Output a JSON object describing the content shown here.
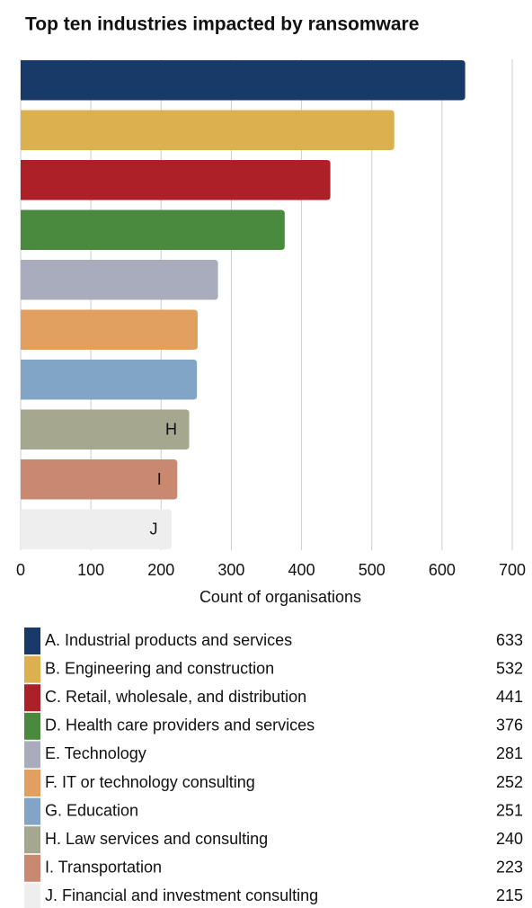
{
  "chart_data": {
    "type": "barh",
    "title": "Top ten industries impacted by ransomware",
    "xlabel": "Count of organisations",
    "categories": [
      "A. Industrial products and services",
      "B. Engineering and construction",
      "C. Retail, wholesale, and distribution",
      "D. Health care providers and services",
      "E. Technology",
      "F. IT or technology consulting",
      "G. Education",
      "H. Law services and consulting",
      "I. Transportation",
      "J. Financial and investment consulting"
    ],
    "bar_labels": [
      null,
      null,
      null,
      null,
      null,
      null,
      null,
      "H",
      "I",
      "J"
    ],
    "values": [
      633,
      532,
      441,
      376,
      281,
      252,
      251,
      240,
      223,
      215
    ],
    "colors": [
      "#173a68",
      "#ddb04f",
      "#ae2027",
      "#4a8a3f",
      "#a9acbc",
      "#e1a05f",
      "#80a5c6",
      "#a5a88f",
      "#c98870",
      "#eeeeee"
    ],
    "xlim": [
      0,
      700
    ],
    "xticks": [
      0,
      100,
      200,
      300,
      400,
      500,
      600,
      700
    ],
    "grid": true
  }
}
